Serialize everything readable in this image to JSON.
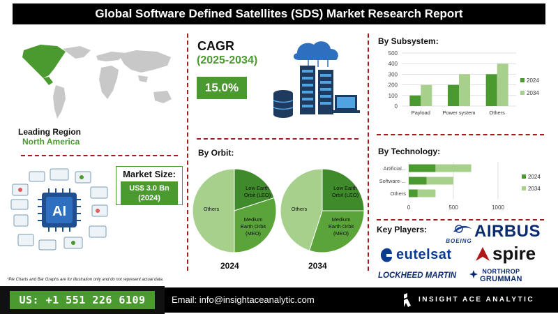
{
  "title": "Global Software Defined Satellites (SDS) Market Research Report",
  "region": {
    "label": "Leading Region",
    "value": "North America"
  },
  "cagr": {
    "title": "CAGR",
    "years": "(2025-2034)",
    "value": "15.0%"
  },
  "market_size": {
    "label": "Market Size:",
    "value_line1": "US$ 3.0 Bn",
    "value_line2": "(2024)"
  },
  "sections": {
    "subsystem": "By Subsystem:",
    "technology": "By Technology:",
    "orbit": "By Orbit:",
    "key_players": "Key Players:"
  },
  "footnote": "*Pie Charts and Bar Graphs are for illustration only and do not represent actual data.",
  "footer": {
    "phone": "US: +1 551 226 6109",
    "email": "Email: info@insightaceanalytic.com",
    "brand": "INSIGHT ACE ANALYTIC"
  },
  "key_players": [
    "BOEING",
    "AIRBUS",
    "eutelsat",
    "spire",
    "LOCKHEED MARTIN",
    "NORTHROP",
    "GRUMMAN"
  ],
  "colors": {
    "dark_green": "#4a9a2f",
    "light_green": "#a8d08d",
    "accent_red": "#a31b1b"
  },
  "chart_data": [
    {
      "type": "bar",
      "categories": [
        "Payload",
        "Power system",
        "Others"
      ],
      "series": [
        {
          "name": "2024",
          "values": [
            100,
            200,
            300
          ]
        },
        {
          "name": "2034",
          "values": [
            200,
            300,
            400
          ]
        }
      ],
      "ylim": [
        0,
        500
      ],
      "yticks": [
        0,
        100,
        200,
        300,
        400,
        500
      ],
      "legend": "right"
    },
    {
      "type": "bar",
      "orientation": "horizontal",
      "categories": [
        "Artificial...",
        "Software-...",
        "Others"
      ],
      "series": [
        {
          "name": "2024",
          "values": [
            300,
            200,
            100
          ]
        },
        {
          "name": "2034",
          "values": [
            400,
            300,
            200
          ]
        }
      ],
      "xlim": [
        0,
        1000
      ],
      "xticks": [
        0,
        500,
        1000
      ],
      "stacked": true,
      "legend": "right"
    },
    {
      "type": "pie",
      "label": "2024",
      "slices": [
        {
          "name": "Low Earth Orbit (LEO)",
          "value": 20
        },
        {
          "name": "Medium Earth Orbit (MEO)",
          "value": 30
        },
        {
          "name": "Others",
          "value": 50
        }
      ]
    },
    {
      "type": "pie",
      "label": "2034",
      "slices": [
        {
          "name": "Low Earth Orbit (LEO)",
          "value": 25
        },
        {
          "name": "Medium Earth Orbit (MEO)",
          "value": 30
        },
        {
          "name": "Others",
          "value": 45
        }
      ]
    }
  ]
}
